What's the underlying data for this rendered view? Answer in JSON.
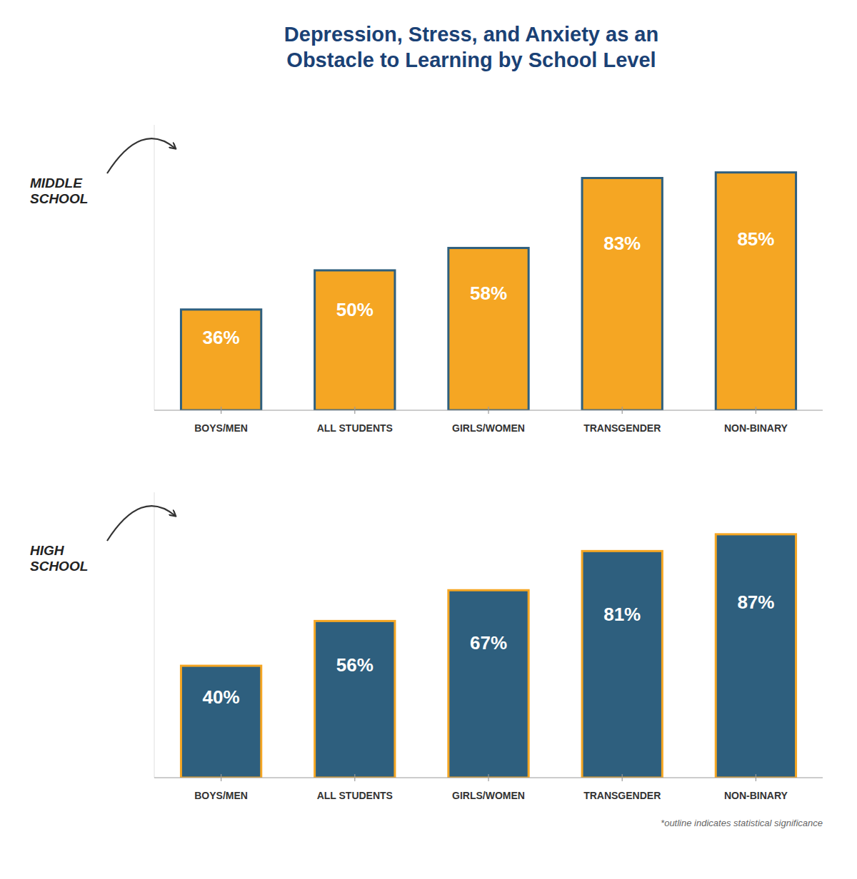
{
  "chart_data": [
    {
      "type": "bar",
      "title": "Depression, Stress, and Anxiety as an\nObstacle to Learning by School Level",
      "annotations": [
        "MIDDLE\nSCHOOL"
      ],
      "categories": [
        "BOYS/MEN",
        "ALL STUDENTS",
        "GIRLS/WOMEN",
        "TRANSGENDER",
        "NON-BINARY"
      ],
      "values": [
        36,
        50,
        58,
        83,
        85
      ],
      "value_labels": [
        "36%",
        "50%",
        "58%",
        "83%",
        "85%"
      ],
      "color": "#F5A623",
      "ylim": [
        0,
        102
      ],
      "yticks": [],
      "grid": false,
      "data_labels": true,
      "tick_labels": "x"
    },
    {
      "type": "bar",
      "annotations": [
        "HIGH\nSCHOOL",
        "*outline indicates statistical significance"
      ],
      "categories": [
        "BOYS/MEN",
        "ALL STUDENTS",
        "GIRLS/WOMEN",
        "TRANSGENDER",
        "NON-BINARY"
      ],
      "values": [
        40,
        56,
        67,
        81,
        87
      ],
      "value_labels": [
        "40%",
        "56%",
        "67%",
        "81%",
        "87%"
      ],
      "color": "#2E5F7E",
      "ylim": [
        0,
        102
      ],
      "yticks": [],
      "grid": false,
      "data_labels": true,
      "tick_labels": "x"
    }
  ]
}
